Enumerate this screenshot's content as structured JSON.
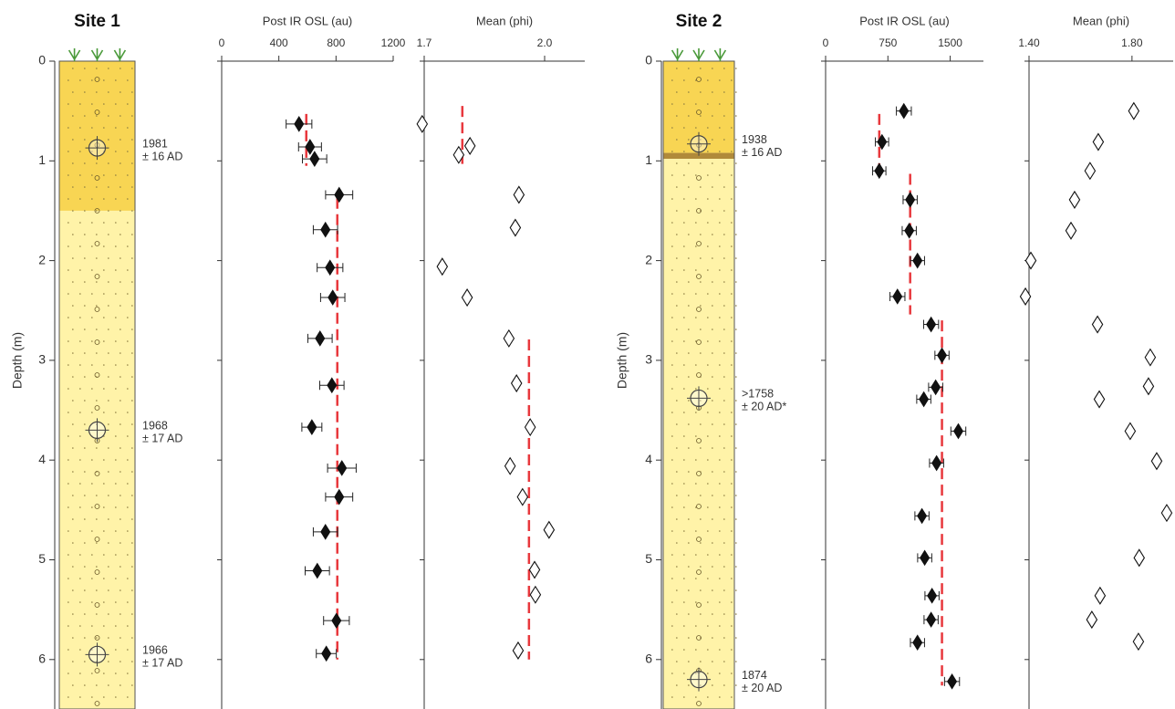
{
  "chart_data": [
    {
      "type": "column",
      "title": "Site 1",
      "ylabel": "Depth (m)",
      "ylim": [
        0,
        6.5
      ],
      "yticks": [
        0,
        1,
        2,
        3,
        4,
        5,
        6
      ],
      "layers": [
        {
          "from": 0,
          "to": 1.5,
          "color": "#f8d553"
        },
        {
          "from": 1.5,
          "to": 6.5,
          "color": "#fff3a8"
        }
      ],
      "samples": [
        {
          "depth": 0.87,
          "label_lines": [
            "1981",
            "± 16 AD"
          ]
        },
        {
          "depth": 3.7,
          "label_lines": [
            "1968",
            "± 17 AD"
          ]
        },
        {
          "depth": 5.95,
          "label_lines": [
            "1966",
            "± 17 AD"
          ]
        }
      ]
    },
    {
      "type": "scatter",
      "title": "Post IR OSL (au)",
      "marker": "filled",
      "xlim": [
        0,
        1200
      ],
      "xticks": [
        0,
        400,
        800,
        1200
      ],
      "ylim": [
        0,
        6.5
      ],
      "yticks": [
        0,
        1,
        2,
        3,
        4,
        5,
        6
      ],
      "x": [
        541,
        618,
        650,
        822,
        726,
        758,
        777,
        688,
        771,
        631,
        841,
        822,
        726,
        669,
        803,
        732
      ],
      "xerr": [
        90,
        80,
        85,
        95,
        85,
        90,
        85,
        85,
        85,
        70,
        100,
        95,
        85,
        85,
        90,
        70
      ],
      "y": [
        0.63,
        0.86,
        0.98,
        1.34,
        1.69,
        2.07,
        2.37,
        2.78,
        3.25,
        3.67,
        4.08,
        4.37,
        4.72,
        5.11,
        5.61,
        5.94
      ],
      "mean_color": "#e8383d",
      "mean_lines": [
        {
          "value": 592,
          "from": 0.53,
          "to": 1.05
        },
        {
          "value": 809,
          "from": 1.37,
          "to": 6.0
        }
      ]
    },
    {
      "type": "scatter",
      "title": "Mean (phi)",
      "marker": "open",
      "xlim": [
        1.7,
        2.1
      ],
      "xticks": [
        1.7,
        {
          "value": 2,
          "label": "2.0"
        }
      ],
      "ylim": [
        0,
        6.5
      ],
      "yticks": [
        0,
        1,
        2,
        3,
        4,
        5,
        6
      ],
      "x": [
        1.695,
        1.814,
        1.786,
        1.936,
        1.927,
        1.745,
        1.807,
        1.911,
        1.93,
        1.964,
        1.914,
        1.945,
        2.011,
        1.975,
        1.977,
        1.934
      ],
      "y": [
        0.63,
        0.85,
        0.94,
        1.34,
        1.67,
        2.06,
        2.37,
        2.78,
        3.23,
        3.67,
        4.06,
        4.37,
        4.7,
        5.1,
        5.35,
        5.91
      ],
      "mean_color": "#e8383d",
      "mean_lines": [
        {
          "value": 1.795,
          "from": 0.45,
          "to": 1.03
        },
        {
          "value": 1.961,
          "from": 2.79,
          "to": 6.0
        }
      ]
    },
    {
      "type": "column",
      "title": "Site 2",
      "ylabel": "Depth (m)",
      "ylim": [
        0,
        6.5
      ],
      "yticks": [
        0,
        1,
        2,
        3,
        4,
        5,
        6
      ],
      "layers": [
        {
          "from": 0,
          "to": 0.92,
          "color": "#f8d553"
        },
        {
          "from": 0.92,
          "to": 0.98,
          "color": "#b08a3a"
        },
        {
          "from": 0.98,
          "to": 6.5,
          "color": "#fff3a8"
        }
      ],
      "samples": [
        {
          "depth": 0.83,
          "label_lines": [
            "1938",
            "± 16 AD"
          ]
        },
        {
          "depth": 3.38,
          "label_lines": [
            ">1758",
            "± 20 AD*"
          ]
        },
        {
          "depth": 6.2,
          "label_lines": [
            "1874",
            "± 20 AD"
          ]
        }
      ]
    },
    {
      "type": "scatter",
      "title": "Post IR OSL (au)",
      "marker": "filled",
      "xlim": [
        0,
        1900
      ],
      "xticks": [
        0,
        750,
        1500
      ],
      "ylim": [
        0,
        6.5
      ],
      "yticks": [
        0,
        1,
        2,
        3,
        4,
        5,
        6
      ],
      "x": [
        942,
        679,
        646,
        1018,
        1007,
        1106,
        865,
        1270,
        1401,
        1325,
        1182,
        1598,
        1336,
        1160,
        1193,
        1281,
        1270,
        1106,
        1522
      ],
      "xerr": [
        90,
        80,
        80,
        85,
        85,
        85,
        90,
        90,
        85,
        85,
        85,
        90,
        85,
        85,
        85,
        85,
        85,
        85,
        90
      ],
      "y": [
        0.5,
        0.81,
        1.1,
        1.39,
        1.7,
        2.0,
        2.36,
        2.64,
        2.95,
        3.27,
        3.39,
        3.71,
        4.03,
        4.56,
        4.98,
        5.36,
        5.6,
        5.83,
        6.22
      ],
      "mean_color": "#e8383d",
      "mean_lines": [
        {
          "value": 646,
          "from": 0.53,
          "to": 1.08
        },
        {
          "value": 1018,
          "from": 1.13,
          "to": 2.54
        },
        {
          "value": 1401,
          "from": 2.6,
          "to": 6.26
        }
      ]
    },
    {
      "type": "scatter",
      "title": "Mean (phi)",
      "marker": "open",
      "xlim": [
        1.4,
        1.96
      ],
      "xticks": [
        {
          "value": 1.4,
          "label": "1.40"
        },
        {
          "value": 1.8,
          "label": "1.80"
        }
      ],
      "ylim": [
        0,
        6.5
      ],
      "yticks": [
        0,
        1,
        2,
        3,
        4,
        5,
        6
      ],
      "x": [
        1.807,
        1.669,
        1.637,
        1.577,
        1.563,
        1.407,
        1.386,
        1.666,
        1.871,
        1.864,
        1.673,
        1.793,
        1.896,
        1.935,
        1.828,
        1.676,
        1.644,
        1.825
      ],
      "y": [
        0.5,
        0.81,
        1.1,
        1.39,
        1.7,
        2.0,
        2.36,
        2.64,
        2.97,
        3.26,
        3.39,
        3.71,
        4.01,
        4.53,
        4.98,
        5.36,
        5.6,
        5.82
      ]
    }
  ]
}
